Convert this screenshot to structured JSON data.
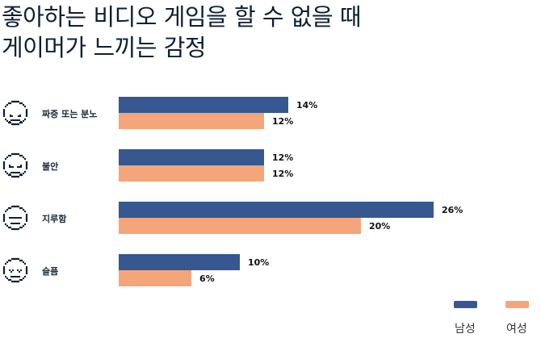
{
  "chart_data": {
    "type": "bar",
    "orientation": "horizontal",
    "title": "좋아하는 비디오 게임을 할 수 없을 때\n게이머가 느끼는 감정",
    "categories": [
      "짜증 또는 분노",
      "불안",
      "지루함",
      "슬픔"
    ],
    "category_icons": [
      "angry-face-icon",
      "anxious-face-icon",
      "bored-face-icon",
      "sad-face-icon"
    ],
    "series": [
      {
        "name": "남성",
        "color": "#36578f",
        "values": [
          14,
          12,
          26,
          10
        ]
      },
      {
        "name": "여성",
        "color": "#f4a57a",
        "values": [
          12,
          12,
          20,
          6
        ]
      }
    ],
    "value_suffix": "%",
    "legend": "bottom-right",
    "grid": false
  }
}
